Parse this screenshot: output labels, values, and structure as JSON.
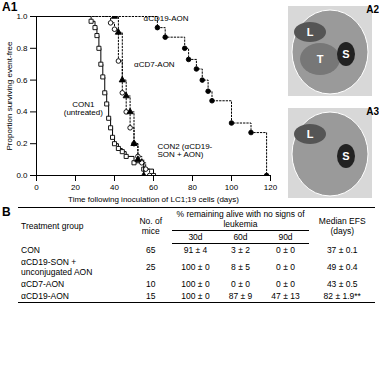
{
  "chart_panel": "A1",
  "chart_data": {
    "type": "line",
    "x_label": "Time following inoculation of LC1;19 cells (days)",
    "y_label": "Proportion surviving event-free",
    "xlim": [
      0,
      120
    ],
    "xticks": [
      0,
      20,
      40,
      60,
      80,
      100,
      120
    ],
    "ylim": [
      0,
      1
    ],
    "yticks": [
      {
        "value": 0,
        "label": "0.0"
      },
      {
        "value": 0.2,
        "label": "0.2"
      },
      {
        "value": 0.4,
        "label": "0.4"
      },
      {
        "value": 0.6,
        "label": "0.6"
      },
      {
        "value": 0.8,
        "label": "0.8"
      },
      {
        "value": 1,
        "label": "1.0"
      }
    ],
    "grid": false,
    "series": [
      {
        "name": "CON1 (untreated)",
        "color": "#000000",
        "marker": "square-open",
        "line_style": "solid",
        "x": [
          0,
          28,
          30,
          31,
          32,
          33,
          34,
          35,
          36,
          37,
          38,
          39,
          40,
          42,
          44,
          46,
          50,
          55,
          60
        ],
        "values": [
          1,
          0.97,
          0.93,
          0.88,
          0.8,
          0.7,
          0.62,
          0.52,
          0.45,
          0.36,
          0.3,
          0.24,
          0.2,
          0.17,
          0.15,
          0.12,
          0.08,
          0.04,
          0
        ]
      },
      {
        "name": "CON2 (αCD19-SON + AON)",
        "color": "#000000",
        "marker": "circle-open",
        "line_style": "dotted",
        "x": [
          0,
          38,
          40,
          42,
          44,
          46,
          48,
          50,
          52,
          54,
          56,
          58
        ],
        "values": [
          1,
          0.96,
          0.92,
          0.72,
          0.52,
          0.4,
          0.3,
          0.2,
          0.12,
          0.08,
          0.04,
          0
        ]
      },
      {
        "name": "αCD7-AON",
        "color": "#000000",
        "marker": "triangle-filled",
        "line_style": "dotted",
        "x": [
          0,
          40,
          42,
          44,
          46,
          48,
          50,
          52,
          55
        ],
        "values": [
          1,
          1,
          0.9,
          0.6,
          0.5,
          0.4,
          0.2,
          0.1,
          0
        ]
      },
      {
        "name": "αCD19-AON",
        "color": "#000000",
        "marker": "circle-filled",
        "line_style": "dotted",
        "x": [
          0,
          62,
          66,
          76,
          78,
          82,
          85,
          88,
          90,
          100,
          110,
          118
        ],
        "values": [
          1,
          0.93,
          0.87,
          0.8,
          0.73,
          0.67,
          0.6,
          0.53,
          0.47,
          0.33,
          0.27,
          0
        ]
      }
    ]
  },
  "images": [
    {
      "panel": "A2",
      "labels": [
        "L",
        "T",
        "S"
      ]
    },
    {
      "panel": "A3",
      "labels": [
        "L",
        "S"
      ]
    }
  ],
  "table": {
    "panel": "B",
    "header": {
      "group": "Treatment group",
      "n": "No. of mice",
      "span": "% remaining alive with no signs of leukemia",
      "days": [
        "30d",
        "60d",
        "90d"
      ],
      "median": "Median EFS (days)"
    },
    "rows": [
      [
        "CON",
        "65",
        "91 ± 4",
        "3 ± 2",
        "0 ± 0",
        "37 ± 0.1"
      ],
      [
        "αCD19-SON + unconjugated AON",
        "25",
        "100 ± 0",
        "8 ± 5",
        "0 ± 0",
        "49 ± 0.4"
      ],
      [
        "αCD7-AON",
        "10",
        "100 ± 0",
        "0 ± 0",
        "0 ± 0",
        "43 ± 0.5"
      ],
      [
        "αCD19-AON",
        "15",
        "100 ± 0",
        "87 ± 9",
        "47 ± 13",
        "82 ± 1.9**"
      ]
    ]
  }
}
